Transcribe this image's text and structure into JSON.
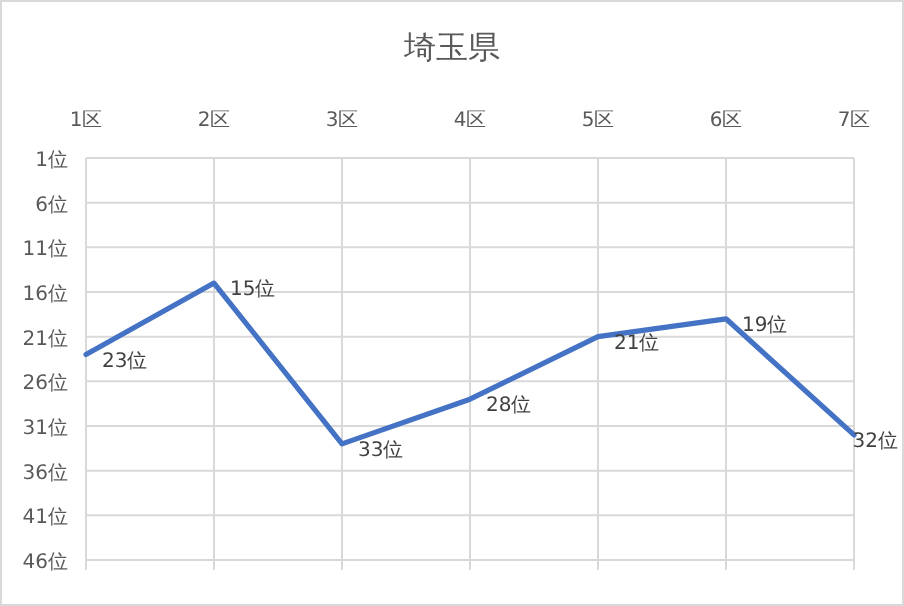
{
  "chart_data": {
    "type": "line",
    "title": "埼玉県",
    "categories": [
      "1区",
      "2区",
      "3区",
      "4区",
      "5区",
      "6区",
      "7区"
    ],
    "values": [
      23,
      15,
      33,
      28,
      21,
      19,
      32
    ],
    "value_labels": [
      "23位",
      "15位",
      "33位",
      "28位",
      "21位",
      "19位",
      "32位"
    ],
    "color": "#4472c4",
    "ylim": [
      46,
      1
    ],
    "yticks": [
      {
        "value": 1,
        "label": "1位"
      },
      {
        "value": 6,
        "label": "6位"
      },
      {
        "value": 11,
        "label": "11位"
      },
      {
        "value": 16,
        "label": "16位"
      },
      {
        "value": 21,
        "label": "21位"
      },
      {
        "value": 26,
        "label": "26位"
      },
      {
        "value": 31,
        "label": "31位"
      },
      {
        "value": 36,
        "label": "36位"
      },
      {
        "value": 41,
        "label": "41位"
      },
      {
        "value": 46,
        "label": "46位"
      }
    ],
    "grid": true
  }
}
